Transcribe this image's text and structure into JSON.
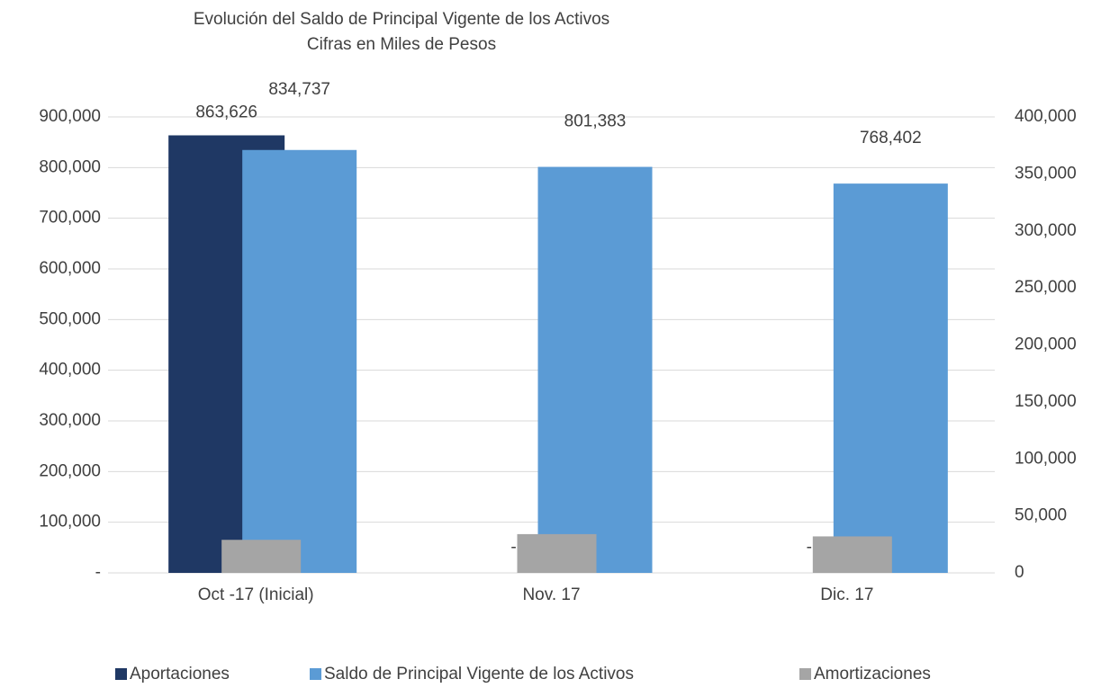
{
  "chart_data": {
    "type": "bar",
    "title": "Evolución del Saldo de Principal Vigente de los Activos",
    "subtitle": "Cifras en Miles de Pesos",
    "categories": [
      "Oct -17 (Inicial)",
      "Nov. 17",
      "Dic. 17"
    ],
    "series": [
      {
        "name": "Aportaciones",
        "color": "#1f3864",
        "values": [
          863626,
          0,
          0
        ],
        "value_labels": [
          "863,626",
          "-",
          "-"
        ]
      },
      {
        "name": "Saldo de Principal Vigente de los Activos",
        "color": "#5b9bd5",
        "values": [
          834737,
          801383,
          768402
        ],
        "value_labels": [
          "834,737",
          "801,383",
          "768,402"
        ]
      },
      {
        "name": "Amortizaciones",
        "color": "#a5a5a5",
        "values": [
          29000,
          34000,
          32000
        ],
        "axis": "y2"
      }
    ],
    "ylim": [
      0,
      900000
    ],
    "yticks": [
      {
        "value": 0,
        "label": "-"
      },
      {
        "value": 100000,
        "label": "100,000"
      },
      {
        "value": 200000,
        "label": "200,000"
      },
      {
        "value": 300000,
        "label": "300,000"
      },
      {
        "value": 400000,
        "label": "400,000"
      },
      {
        "value": 500000,
        "label": "500,000"
      },
      {
        "value": 600000,
        "label": "600,000"
      },
      {
        "value": 700000,
        "label": "700,000"
      },
      {
        "value": 800000,
        "label": "800,000"
      },
      {
        "value": 900000,
        "label": "900,000"
      }
    ],
    "y2lim": [
      0,
      400000
    ],
    "y2ticks": [
      0,
      {
        "value": 50000,
        "label": "50,000"
      },
      {
        "value": 100000,
        "label": "100,000"
      },
      {
        "value": 150000,
        "label": "150,000"
      },
      {
        "value": 200000,
        "label": "200,000"
      },
      {
        "value": 250000,
        "label": "250,000"
      },
      {
        "value": 300000,
        "label": "300,000"
      },
      {
        "value": 350000,
        "label": "350,000"
      },
      {
        "value": 400000,
        "label": "400,000"
      }
    ],
    "grid": true,
    "legend": "bottom"
  }
}
